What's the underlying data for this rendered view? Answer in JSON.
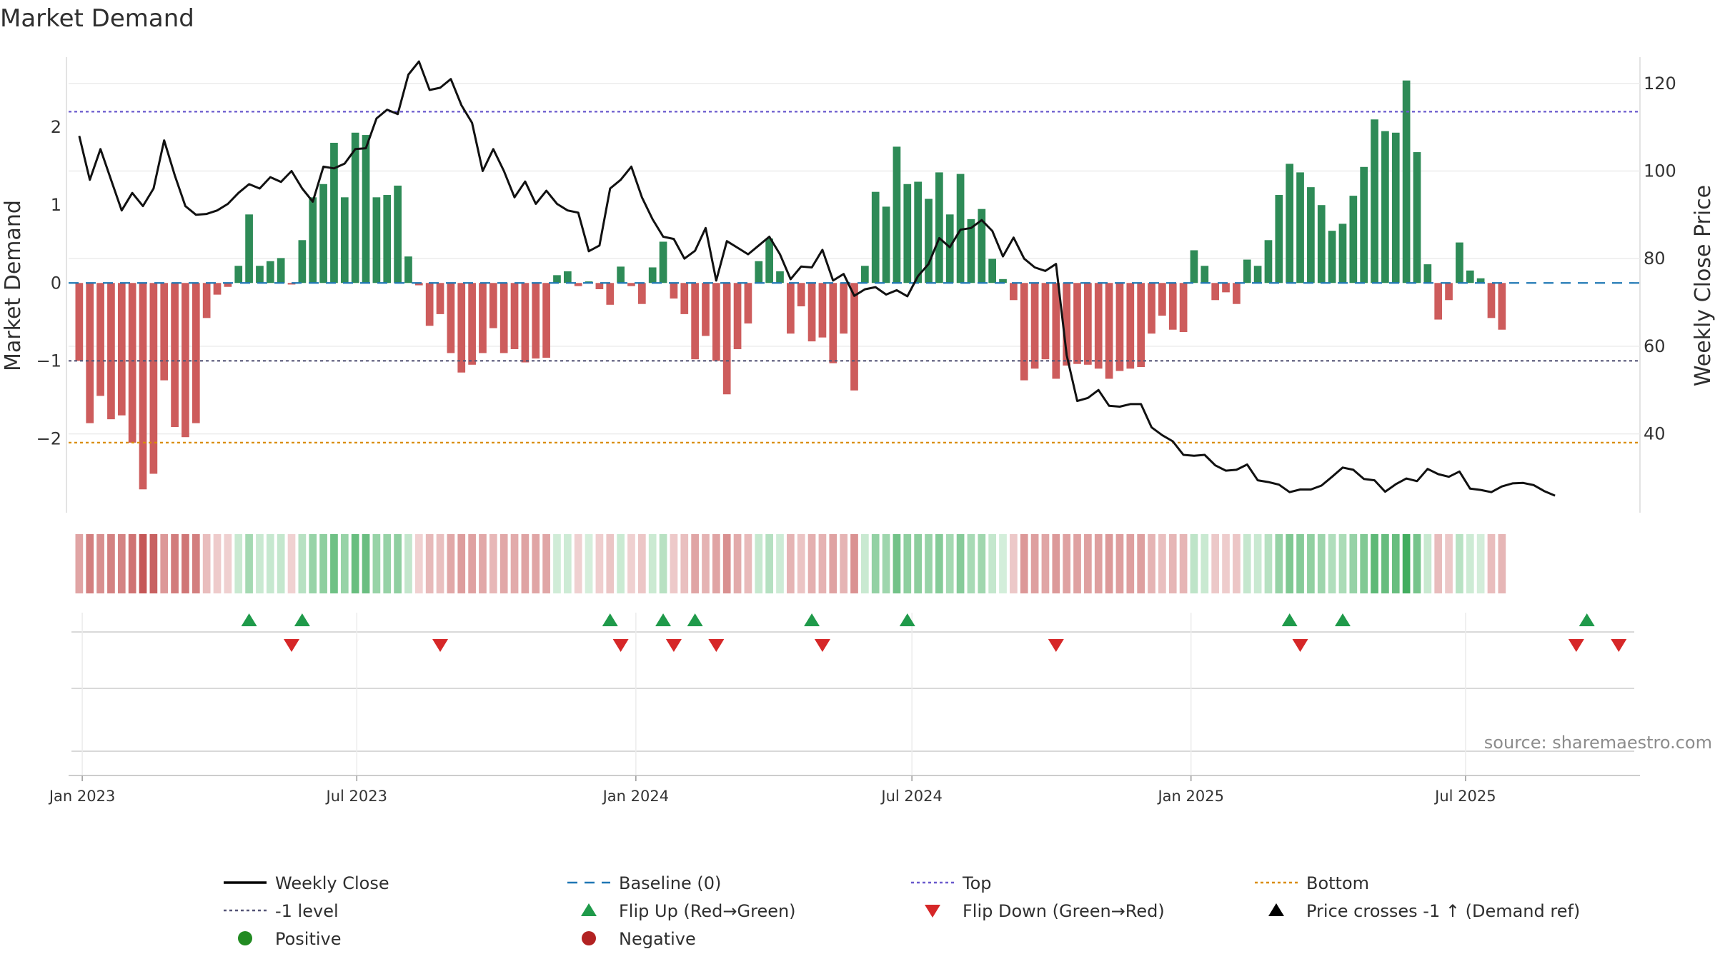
{
  "chart_data": {
    "type": "bar",
    "title": "Market Demand",
    "ylabel": "Market Demand",
    "y2label": "Weekly Close Price",
    "ylim": [
      -2.95,
      2.9
    ],
    "y2lim": [
      22,
      126
    ],
    "yticks": [
      -2,
      -1,
      0,
      1,
      2
    ],
    "yticks_labels": [
      "−2",
      "−1",
      "0",
      "1",
      "2"
    ],
    "y2ticks": [
      40,
      60,
      80,
      100,
      120
    ],
    "x_start": "2022-12-30",
    "xlim": [
      "2022-12-23",
      "2025-10-24"
    ],
    "xticks": [
      {
        "date": "2023-01-01",
        "label": "Jan 2023"
      },
      {
        "date": "2023-07-01",
        "label": "Jul 2023"
      },
      {
        "date": "2024-01-01",
        "label": "Jan 2024"
      },
      {
        "date": "2024-07-01",
        "label": "Jul 2024"
      },
      {
        "date": "2025-01-01",
        "label": "Jan 2025"
      },
      {
        "date": "2025-07-01",
        "label": "Jul 2025"
      }
    ],
    "reference_lines": {
      "top": 2.2,
      "bottom": -2.05,
      "minus_one": -1,
      "baseline": 0
    },
    "demand": [
      -1.0,
      -1.8,
      -1.45,
      -1.75,
      -1.7,
      -2.05,
      -2.65,
      -2.45,
      -1.25,
      -1.85,
      -1.98,
      -1.8,
      -0.45,
      -0.15,
      -0.05,
      0.22,
      0.88,
      0.22,
      0.28,
      0.32,
      -0.02,
      0.55,
      1.1,
      1.27,
      1.8,
      1.1,
      1.93,
      1.9,
      1.1,
      1.13,
      1.25,
      0.34,
      -0.03,
      -0.55,
      -0.4,
      -0.9,
      -1.15,
      -1.05,
      -0.9,
      -0.58,
      -0.9,
      -0.85,
      -1.02,
      -0.97,
      -0.96,
      0.1,
      0.15,
      -0.04,
      0.02,
      -0.08,
      -0.28,
      0.21,
      -0.04,
      -0.27,
      0.2,
      0.53,
      -0.2,
      -0.4,
      -0.98,
      -0.68,
      -1.0,
      -1.43,
      -0.85,
      -0.52,
      0.28,
      0.57,
      0.15,
      -0.65,
      -0.3,
      -0.75,
      -0.7,
      -1.03,
      -0.65,
      -1.38,
      0.22,
      1.17,
      0.98,
      1.75,
      1.27,
      1.3,
      1.08,
      1.42,
      0.88,
      1.4,
      0.82,
      0.95,
      0.31,
      0.05,
      -0.22,
      -1.25,
      -1.1,
      -0.98,
      -1.23,
      -1.06,
      -1.04,
      -1.05,
      -1.1,
      -1.23,
      -1.13,
      -1.1,
      -1.08,
      -0.65,
      -0.42,
      -0.6,
      -0.63,
      0.42,
      0.22,
      -0.22,
      -0.12,
      -0.27,
      0.3,
      0.22,
      0.55,
      1.13,
      1.53,
      1.42,
      1.23,
      1.0,
      0.67,
      0.76,
      1.12,
      1.49,
      2.1,
      1.95,
      1.93,
      2.6,
      1.68,
      0.24,
      -0.47,
      -0.22,
      0.52,
      0.16,
      0.06,
      -0.45,
      -0.6
    ],
    "weekly_close": [
      108,
      98,
      105,
      98,
      91,
      95,
      92,
      96,
      107,
      99,
      92,
      90,
      90.2,
      91,
      92.5,
      95,
      97,
      96,
      98.6,
      97.5,
      100,
      96,
      93,
      101,
      100.6,
      101.7,
      105,
      105.2,
      112,
      114,
      113,
      122,
      125,
      118.5,
      119,
      121,
      115,
      111,
      100,
      105,
      100,
      94,
      97.6,
      92.5,
      95.5,
      92.5,
      91,
      90.5,
      81.7,
      83,
      96,
      98,
      101,
      94,
      89,
      85,
      84.5,
      80,
      81.8,
      87,
      75,
      84,
      82.5,
      81,
      83,
      85,
      81,
      75.3,
      78.2,
      78,
      82,
      75,
      76.5,
      71.5,
      73,
      73.5,
      71.8,
      72.8,
      71.4,
      76,
      78.8,
      84.7,
      82.6,
      86.6,
      87,
      88.8,
      86.3,
      80.5,
      84.8,
      80,
      78,
      77.2,
      78.8,
      58,
      47.5,
      48.2,
      50,
      46.4,
      46.2,
      46.8,
      46.8,
      41.5,
      39.7,
      38.3,
      35.2,
      35,
      35.2,
      32.8,
      31.6,
      31.8,
      33,
      29.4,
      29,
      28.4,
      26.7,
      27.3,
      27.3,
      28.2,
      30.2,
      32.3,
      31.8,
      29.7,
      29.4,
      26.8,
      28.5,
      29.8,
      29.2,
      32,
      30.8,
      30.2,
      31.4,
      27.5,
      27.2,
      26.7,
      28,
      28.7,
      28.8,
      28.3,
      26.9,
      25.9
    ],
    "flip_up": [
      "2023-04-21",
      "2023-05-26",
      "2023-12-15",
      "2024-01-19",
      "2024-02-09",
      "2024-04-26",
      "2024-06-28",
      "2025-03-07",
      "2025-04-11",
      "2025-09-19"
    ],
    "flip_down": [
      "2023-05-19",
      "2023-08-25",
      "2023-12-22",
      "2024-01-26",
      "2024-02-23",
      "2024-05-03",
      "2024-10-04",
      "2025-03-14",
      "2025-09-12",
      "2025-10-10"
    ],
    "legend": [
      {
        "label": "Weekly Close",
        "symbol": "line",
        "color": "#000000"
      },
      {
        "label": "Baseline (0)",
        "symbol": "dash",
        "color": "#1f77b4"
      },
      {
        "label": "Top",
        "symbol": "dot",
        "color": "#6a5acd"
      },
      {
        "label": "Bottom",
        "symbol": "dot",
        "color": "#d98c00"
      },
      {
        "label": "-1 level",
        "symbol": "dot",
        "color": "#555577"
      },
      {
        "label": "Flip Up (Red→Green)",
        "symbol": "tri-up",
        "color": "#1f9a4a"
      },
      {
        "label": "Flip Down (Green→Red)",
        "symbol": "tri-down",
        "color": "#d62728"
      },
      {
        "label": "Price crosses -1 ↑ (Demand ref)",
        "symbol": "tri-up",
        "color": "#000000"
      },
      {
        "label": "Positive",
        "symbol": "circle",
        "color": "#228b22"
      },
      {
        "label": "Negative",
        "symbol": "circle",
        "color": "#b22222"
      }
    ],
    "colors": {
      "positive": "#2e8b57",
      "negative": "#cd5c5c",
      "price": "#111111"
    }
  },
  "source": "source: sharemaestro.com"
}
